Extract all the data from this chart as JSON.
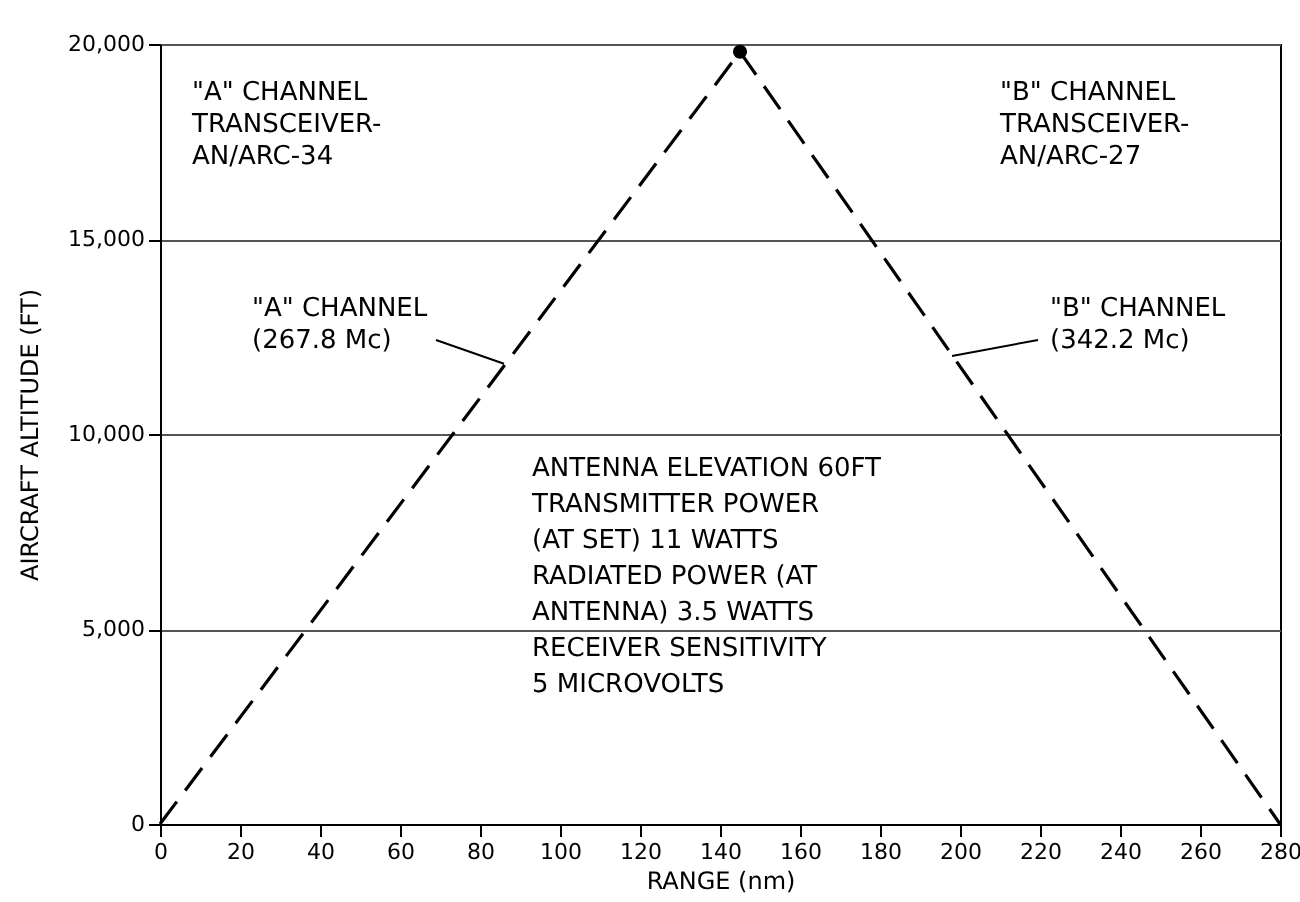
{
  "chart_data": {
    "type": "line",
    "xlabel": "RANGE (nm)",
    "ylabel": "AIRCRAFT ALTITUDE (FT)",
    "xlim": [
      0,
      280
    ],
    "xticks": [
      0,
      20,
      40,
      60,
      80,
      100,
      120,
      140,
      160,
      180,
      200,
      220,
      240,
      260,
      280
    ],
    "ylim": [
      0,
      20000
    ],
    "yticks": [
      0,
      {
        "value": 5000,
        "label": "5,000"
      },
      {
        "value": 10000,
        "label": "10,000"
      },
      {
        "value": 15000,
        "label": "15,000"
      },
      {
        "value": 20000,
        "label": "20,000"
      }
    ],
    "grid": "y",
    "line_style": "dashed",
    "series": [
      {
        "color": "#000000",
        "x": [
          0,
          145
        ],
        "values": [
          0,
          19800
        ]
      },
      {
        "color": "#000000",
        "x": [
          145,
          280
        ],
        "values": [
          19800,
          0
        ]
      },
      {
        "type": "scatter",
        "marker": "circle",
        "color": "#000000",
        "x": [
          145
        ],
        "values": [
          19800
        ]
      }
    ],
    "annotations": [
      "\"A\" CHANNEL\nTRANSCEIVER-\nAN/ARC-34",
      "\"B\" CHANNEL\nTRANSCEIVER-\nAN/ARC-27",
      {
        "text": "\"A\" CHANNEL\n(267.8 Mc)",
        "x": 86,
        "y": 11800
      },
      {
        "text": "\"B\" CHANNEL\n(342.2 Mc)",
        "x": 198,
        "y": 12000
      },
      "ANTENNA ELEVATION 60FT\nTRANSMITTER POWER\n (AT SET) 11 WATTS\nRADIATED POWER (AT\nANTENNA) 3.5 WATTS\nRECEIVER SENSITIVITY\n 5 MICROVOLTS"
    ]
  }
}
